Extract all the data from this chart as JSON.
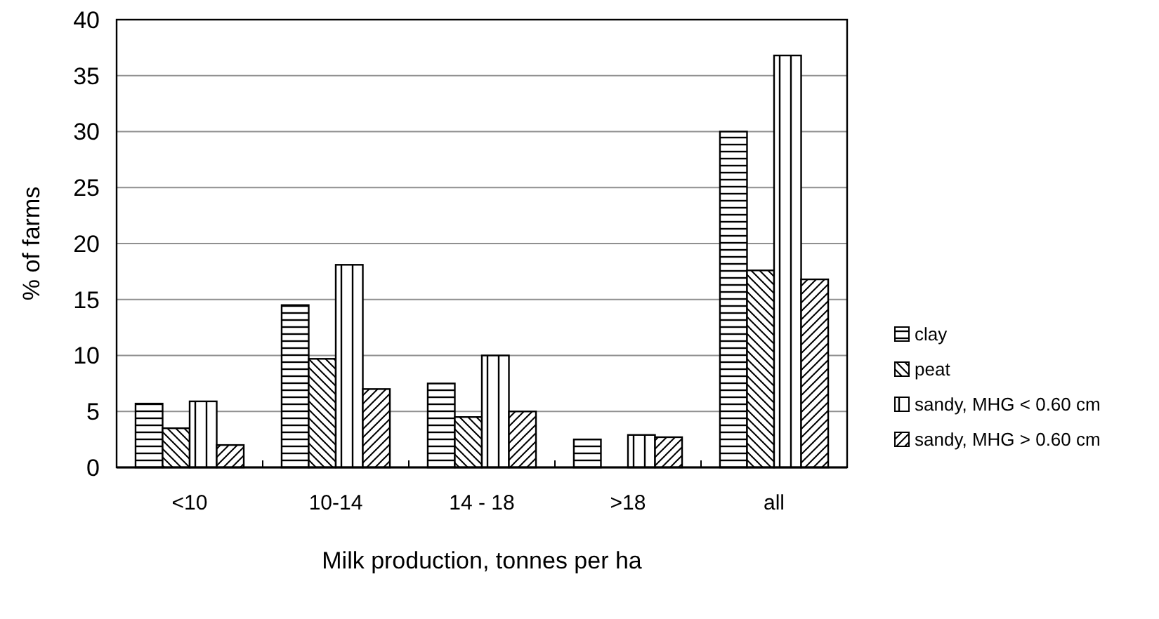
{
  "chart_data": {
    "type": "bar",
    "xlabel": "Milk production, tonnes per ha",
    "ylabel": "% of farms",
    "categories": [
      "<10",
      "10-14",
      "14 - 18",
      ">18",
      "all"
    ],
    "series": [
      {
        "name": "clay",
        "color": "#000000",
        "values": [
          5.7,
          14.5,
          7.5,
          2.5,
          30
        ]
      },
      {
        "name": "peat",
        "color": "#000000",
        "values": [
          3.5,
          9.7,
          4.5,
          null,
          17.6
        ]
      },
      {
        "name": "sandy, MHG < 0.60 cm",
        "color": "#000000",
        "values": [
          5.9,
          18.1,
          10,
          2.9,
          36.8
        ]
      },
      {
        "name": "sandy, MHG > 0.60 cm",
        "color": "#000000",
        "values": [
          2,
          7,
          5,
          2.7,
          16.8
        ]
      }
    ],
    "ylim": [
      0,
      40
    ],
    "yticks": [
      0,
      5,
      10,
      15,
      20,
      25,
      30,
      35,
      40
    ],
    "grid": "y",
    "legend": "right"
  }
}
